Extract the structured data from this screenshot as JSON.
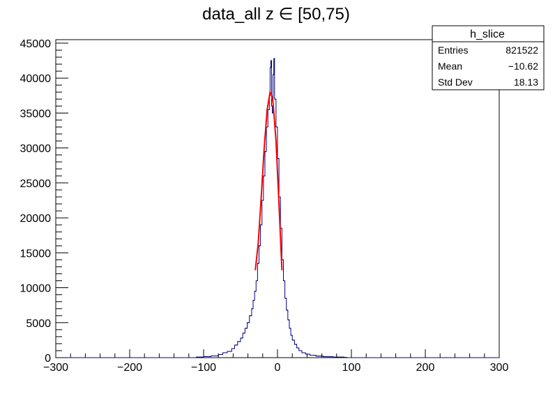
{
  "chart_data": {
    "type": "histogram",
    "title": "data_all z ∈ [50,75)",
    "xlabel": "",
    "ylabel": "",
    "xlim": [
      -300,
      300
    ],
    "ylim": [
      0,
      45500
    ],
    "grid": false,
    "x_ticks": [
      -300,
      -200,
      -100,
      0,
      100,
      200,
      300
    ],
    "x_tick_labels": [
      "−300",
      "−200",
      "−100",
      "0",
      "100",
      "200",
      "300"
    ],
    "y_ticks": [
      0,
      5000,
      10000,
      15000,
      20000,
      25000,
      30000,
      35000,
      40000,
      45000
    ],
    "y_tick_labels": [
      "0",
      "5000",
      "10000",
      "15000",
      "20000",
      "25000",
      "30000",
      "35000",
      "40000",
      "45000"
    ],
    "histogram": {
      "name": "h_slice",
      "color": "#000080",
      "bins": [
        [
          -110,
          80
        ],
        [
          -100,
          150
        ],
        [
          -90,
          250
        ],
        [
          -80,
          450
        ],
        [
          -74,
          700
        ],
        [
          -68,
          900
        ],
        [
          -62,
          1300
        ],
        [
          -58,
          1800
        ],
        [
          -54,
          2300
        ],
        [
          -50,
          2800
        ],
        [
          -47,
          3500
        ],
        [
          -44,
          4200
        ],
        [
          -41,
          5000
        ],
        [
          -38,
          6000
        ],
        [
          -35,
          7000
        ],
        [
          -33,
          8200
        ],
        [
          -31,
          9500
        ],
        [
          -29,
          11000
        ],
        [
          -27,
          13500
        ],
        [
          -25,
          16000
        ],
        [
          -23,
          19000
        ],
        [
          -21,
          22500
        ],
        [
          -19,
          26000
        ],
        [
          -17,
          29500
        ],
        [
          -15,
          33000
        ],
        [
          -13,
          35500
        ],
        [
          -11,
          37500
        ],
        [
          -10,
          41500
        ],
        [
          -9,
          42500
        ],
        [
          -8,
          36000
        ],
        [
          -7,
          35000
        ],
        [
          -6,
          40500
        ],
        [
          -5,
          42800
        ],
        [
          -4,
          37000
        ],
        [
          -2,
          33000
        ],
        [
          0,
          28500
        ],
        [
          2,
          23000
        ],
        [
          4,
          18500
        ],
        [
          6,
          14000
        ],
        [
          8,
          11000
        ],
        [
          10,
          8500
        ],
        [
          12,
          6800
        ],
        [
          14,
          5400
        ],
        [
          16,
          4200
        ],
        [
          18,
          3200
        ],
        [
          20,
          2500
        ],
        [
          23,
          1900
        ],
        [
          26,
          1400
        ],
        [
          29,
          1000
        ],
        [
          33,
          700
        ],
        [
          38,
          500
        ],
        [
          44,
          350
        ],
        [
          52,
          220
        ],
        [
          62,
          140
        ],
        [
          75,
          80
        ],
        [
          90,
          40
        ]
      ]
    },
    "fit": {
      "type": "gaussian",
      "color": "#ff0000",
      "x": [
        -30,
        -26,
        -22,
        -18,
        -14,
        -10,
        -8,
        -6,
        -2,
        2,
        6
      ],
      "y": [
        12500,
        16500,
        23000,
        30000,
        35500,
        38000,
        37500,
        36500,
        31000,
        22000,
        12500
      ]
    },
    "stats_box": {
      "title": "h_slice",
      "rows": [
        {
          "label": "Entries",
          "value": "821522"
        },
        {
          "label": "Mean",
          "value": "−10.62"
        },
        {
          "label": "Std Dev",
          "value": "18.13"
        }
      ]
    }
  }
}
